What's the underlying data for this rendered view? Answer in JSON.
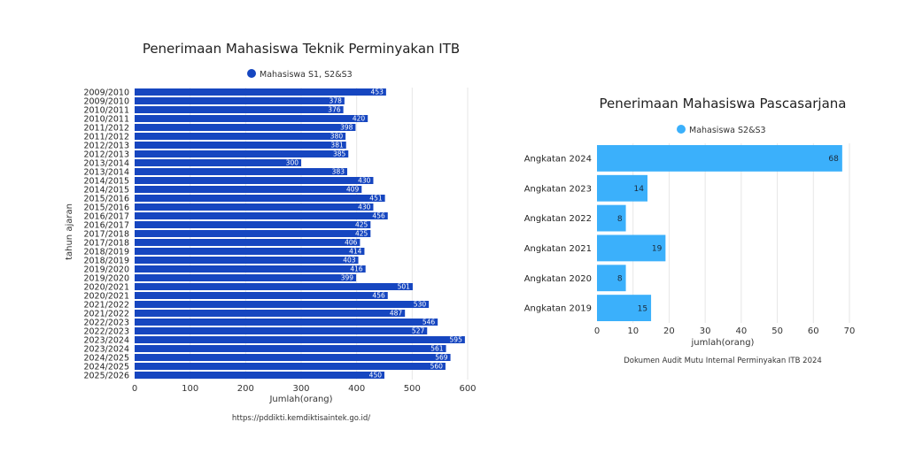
{
  "chart_data": [
    {
      "type": "bar",
      "orientation": "horizontal",
      "title": "Penerimaan Mahasiswa Teknik Perminyakan ITB",
      "legend": [
        {
          "label": "Mahasiswa S1, S2&S3",
          "color": "#1646c0"
        }
      ],
      "legend_position": "top-center",
      "xlabel": "Jumlah(orang)",
      "ylabel": "tahun ajaran",
      "xlim": [
        0,
        600
      ],
      "xticks": [
        0,
        100,
        200,
        300,
        400,
        500,
        600
      ],
      "grid": true,
      "source": "https://pddikti.kemdiktisaintek.go.id/",
      "bar_color": "#1646c0",
      "label_color": "#ffffff",
      "categories": [
        "2009/2010",
        "2009/2010",
        "2010/2011",
        "2010/2011",
        "2011/2012",
        "2011/2012",
        "2012/2013",
        "2012/2013",
        "2013/2014",
        "2013/2014",
        "2014/2015",
        "2014/2015",
        "2015/2016",
        "2015/2016",
        "2016/2017",
        "2016/2017",
        "2017/2018",
        "2017/2018",
        "2018/2019",
        "2018/2019",
        "2019/2020",
        "2019/2020",
        "2020/2021",
        "2020/2021",
        "2021/2022",
        "2021/2022",
        "2022/2023",
        "2022/2023",
        "2023/2024",
        "2023/2024",
        "2024/2025",
        "2024/2025",
        "2025/2026"
      ],
      "values": [
        453,
        378,
        376,
        420,
        398,
        380,
        381,
        385,
        300,
        383,
        430,
        409,
        451,
        430,
        456,
        425,
        425,
        406,
        414,
        403,
        416,
        399,
        501,
        456,
        530,
        487,
        546,
        527,
        595,
        561,
        569,
        560,
        450
      ]
    },
    {
      "type": "bar",
      "orientation": "horizontal",
      "title": "Penerimaan Mahasiswa Pascasarjana",
      "legend": [
        {
          "label": "Mahasiswa S2&S3",
          "color": "#3bb0fb"
        }
      ],
      "legend_position": "top-center",
      "xlabel": "jumlah(orang)",
      "ylabel": "",
      "xlim": [
        0,
        70
      ],
      "xticks": [
        0,
        10,
        20,
        30,
        40,
        50,
        60,
        70
      ],
      "grid": true,
      "source": "Dokumen Audit Mutu Internal Perminyakan ITB 2024",
      "bar_color": "#3bb0fb",
      "label_color": "#1a2a3a",
      "categories": [
        "Angkatan 2024",
        "Angkatan 2023",
        "Angkatan 2022",
        "Angkatan 2021",
        "Angkatan 2020",
        "Angkatan 2019"
      ],
      "values": [
        68,
        14,
        8,
        19,
        8,
        15
      ]
    }
  ]
}
